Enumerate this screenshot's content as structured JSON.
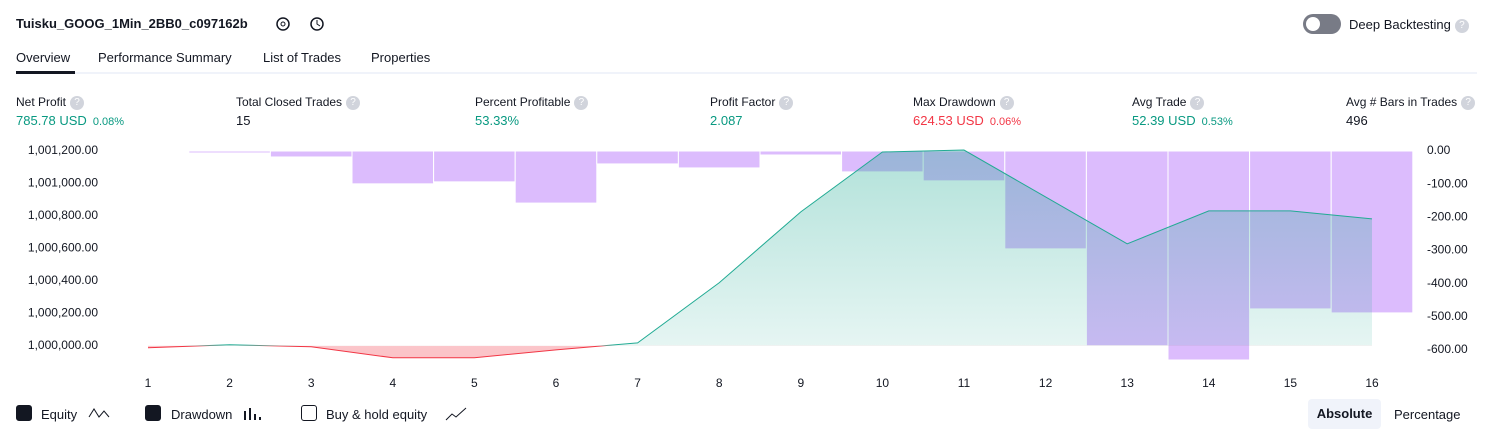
{
  "header": {
    "title": "Tuisku_GOOG_1Min_2BB0_c097162b",
    "deep_backtesting": "Deep Backtesting"
  },
  "tabs": [
    "Overview",
    "Performance Summary",
    "List of Trades",
    "Properties"
  ],
  "metrics": [
    {
      "label": "Net Profit",
      "value": "785.78 USD",
      "pct": "0.08%",
      "color": "#089981"
    },
    {
      "label": "Total Closed Trades",
      "value": "15",
      "color": "#131722"
    },
    {
      "label": "Percent Profitable",
      "value": "53.33%",
      "color": "#089981"
    },
    {
      "label": "Profit Factor",
      "value": "2.087",
      "color": "#089981"
    },
    {
      "label": "Max Drawdown",
      "value": "624.53 USD",
      "pct": "0.06%",
      "color": "#f23645"
    },
    {
      "label": "Avg Trade",
      "value": "52.39 USD",
      "pct": "0.53%",
      "color": "#089981"
    },
    {
      "label": "Avg # Bars in Trades",
      "value": "496",
      "color": "#131722"
    }
  ],
  "chart_data": {
    "type": "combo",
    "x": [
      1,
      2,
      3,
      4,
      5,
      6,
      7,
      8,
      9,
      10,
      11,
      12,
      13,
      14,
      15,
      16
    ],
    "xlim": [
      0.5,
      16.5
    ],
    "series": [
      {
        "name": "Equity",
        "type": "line",
        "axis": "y",
        "color": "#22ab94",
        "negative_color": "#f23645",
        "values": [
          999988,
          1000006,
          999994,
          999926,
          999926,
          999975,
          1000018,
          1000388,
          1000825,
          1001194,
          1001206,
          1000917,
          1000628,
          1000831,
          1000831,
          1000782
        ]
      },
      {
        "name": "Drawdown",
        "type": "bar",
        "axis": "y2",
        "color": "#dcbcfd",
        "values": [
          -3,
          -6,
          -18,
          -99,
          -93,
          -157,
          -39,
          -51,
          -12,
          -63,
          -90,
          -295,
          -587,
          -630,
          -476,
          -488
        ]
      }
    ],
    "ylim": [
      999900,
      1001200
    ],
    "yticks": [
      {
        "value": 1000000,
        "label": "1,000,000.00"
      },
      {
        "value": 1000200,
        "label": "1,000,200.00"
      },
      {
        "value": 1000400,
        "label": "1,000,400.00"
      },
      {
        "value": 1000600,
        "label": "1,000,600.00"
      },
      {
        "value": 1000800,
        "label": "1,000,800.00"
      },
      {
        "value": 1001000,
        "label": "1,001,000.00"
      },
      {
        "value": 1001200,
        "label": "1,001,200.00"
      }
    ],
    "y2lim": [
      -636,
      0
    ],
    "y2ticks": [
      {
        "value": 0,
        "label": "0.00"
      },
      {
        "value": -100,
        "label": "-100.00"
      },
      {
        "value": -200,
        "label": "-200.00"
      },
      {
        "value": -300,
        "label": "-300.00"
      },
      {
        "value": -400,
        "label": "-400.00"
      },
      {
        "value": -500,
        "label": "-500.00"
      },
      {
        "value": -600,
        "label": "-600.00"
      }
    ],
    "grid": false
  },
  "legend": {
    "buy_hold": "Buy & hold equity"
  },
  "buttons": [
    "Absolute",
    "Percentage"
  ]
}
